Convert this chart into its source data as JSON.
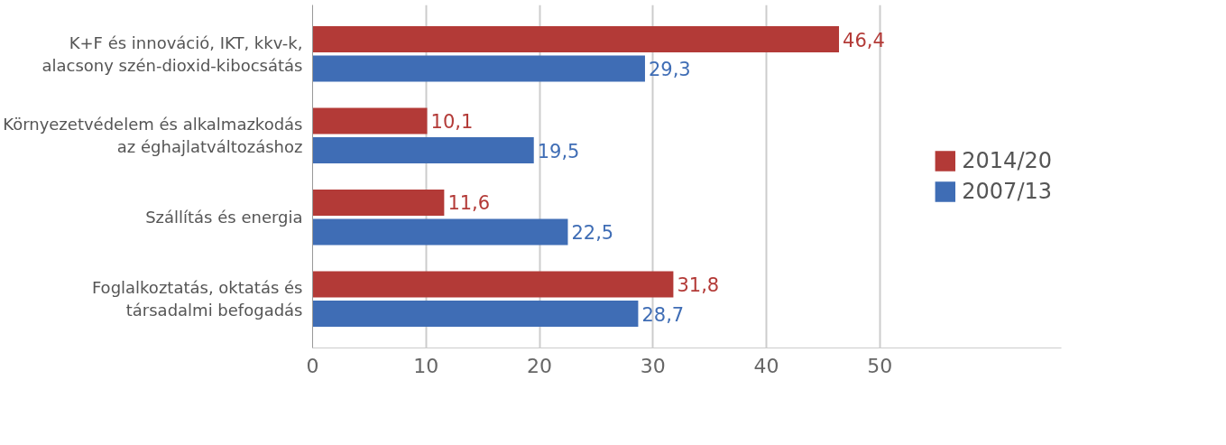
{
  "chart_data": {
    "type": "bar",
    "orientation": "horizontal",
    "categories": [
      "K+F és innováció, IKT, kkv-k,\nalacsony szén-dioxid-kibocsátás",
      "Környezetvédelem és alkalmazkodás\naz éghajlatváltozáshoz",
      "Szállítás és energia",
      "Foglalkoztatás, oktatás és\ntársadalmi befogadás"
    ],
    "series": [
      {
        "name": "2014/20",
        "color": "#b33a37",
        "values": [
          46.4,
          10.1,
          11.6,
          31.8
        ],
        "value_labels": [
          "46,4",
          "10,1",
          "11,6",
          "31,8"
        ]
      },
      {
        "name": "2007/13",
        "color": "#3f6db5",
        "values": [
          29.3,
          19.5,
          22.5,
          28.7
        ],
        "value_labels": [
          "29,3",
          "19,5",
          "22,5",
          "28,7"
        ]
      }
    ],
    "xlim": [
      0,
      66
    ],
    "xticks": [
      0,
      10,
      20,
      30,
      40,
      50
    ],
    "grid": "x",
    "legend": "right"
  }
}
